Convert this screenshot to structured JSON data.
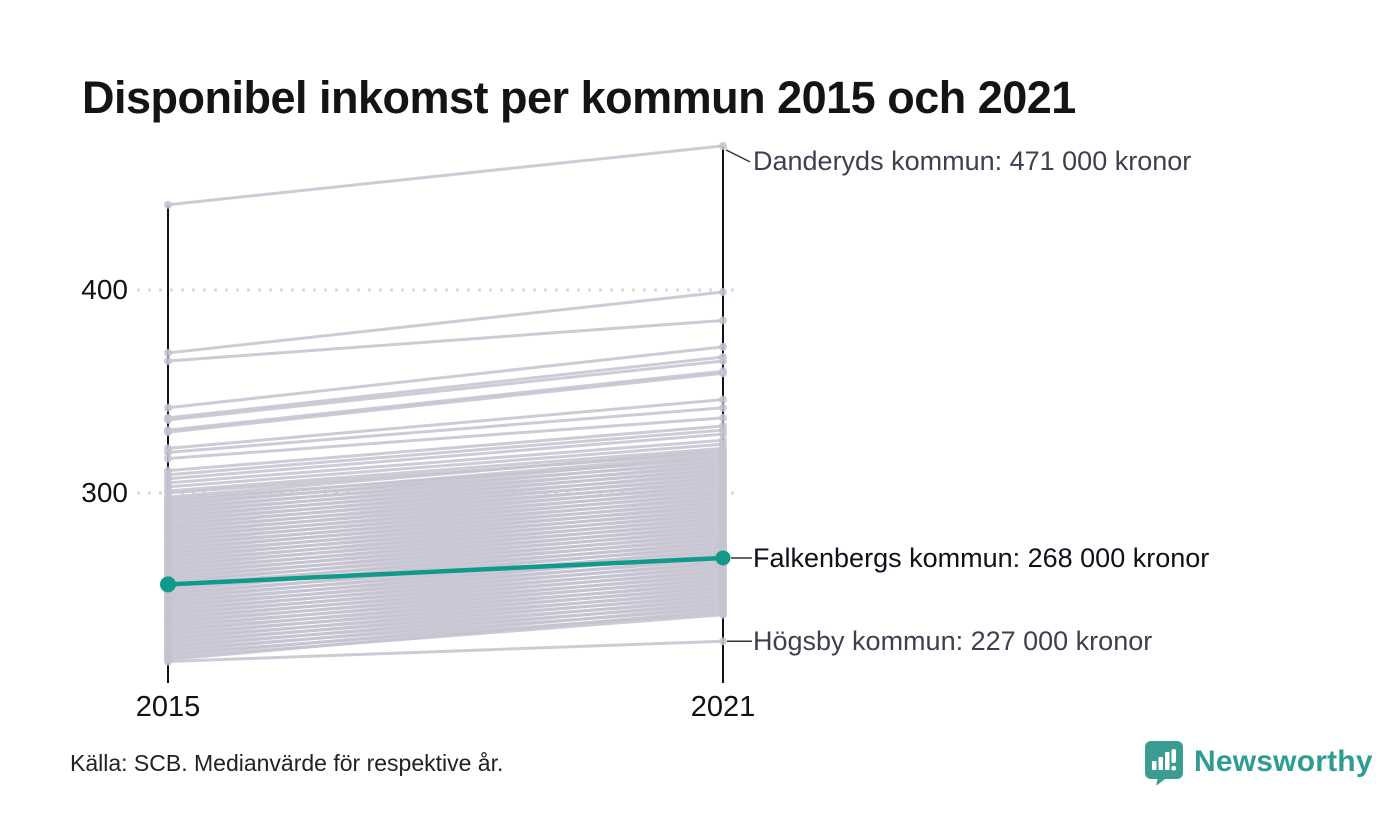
{
  "title": "Disponibel inkomst per kommun 2015 och 2021",
  "source_note": "Källa: SCB. Medianvärde för respektive år.",
  "logo": {
    "text": "Newsworthy",
    "color": "#2f9c92",
    "icon": "newsworthy-speech-bubble-bar-chart-icon",
    "icon_color": "#3b9c92"
  },
  "chart_data": {
    "type": "line",
    "subtype": "slope-chart",
    "x_categories": [
      "2015",
      "2021"
    ],
    "x_tick_labels": {
      "left": "2015",
      "right": "2021"
    },
    "y_tick_labels": {
      "t400": "400",
      "t300": "300"
    },
    "y_grid_values": [
      400,
      300
    ],
    "y_unit": "tusen kronor (medianvärde)",
    "grid": "dotted-horizontal",
    "colors": {
      "background_line": "#c6c3d1",
      "highlight_line": "#119a89",
      "axis": "#111111",
      "gridline": "#d8d8dd",
      "leader": "#333333"
    },
    "highlight_series": {
      "name": "Falkenbergs kommun",
      "values": [
        255,
        268
      ]
    },
    "annotations": [
      {
        "label": "Danderyds kommun: 471 000 kronor",
        "value_2021": 471,
        "highlight": false
      },
      {
        "label": "Falkenbergs kommun: 268 000 kronor",
        "value_2021": 268,
        "highlight": true
      },
      {
        "label": "Högsby kommun: 227 000 kronor",
        "value_2021": 227,
        "highlight": false
      }
    ],
    "background_series": [
      [
        442,
        471
      ],
      [
        369,
        399
      ],
      [
        365,
        385
      ],
      [
        342,
        372
      ],
      [
        337,
        367
      ],
      [
        336,
        365
      ],
      [
        331,
        360
      ],
      [
        330,
        359
      ],
      [
        322,
        346
      ],
      [
        320,
        342
      ],
      [
        317,
        337
      ],
      [
        311,
        333
      ],
      [
        309,
        331
      ],
      [
        307,
        329
      ],
      [
        305,
        326
      ],
      [
        303,
        324
      ],
      [
        301,
        322
      ],
      [
        300,
        320
      ],
      [
        298,
        321
      ],
      [
        297,
        317
      ],
      [
        296,
        319
      ],
      [
        295,
        315
      ],
      [
        294,
        318
      ],
      [
        293,
        313
      ],
      [
        292,
        316
      ],
      [
        291,
        311
      ],
      [
        290,
        314
      ],
      [
        289,
        309
      ],
      [
        288,
        312
      ],
      [
        287,
        307
      ],
      [
        286,
        310
      ],
      [
        285,
        305
      ],
      [
        284,
        308
      ],
      [
        283,
        303
      ],
      [
        282,
        306
      ],
      [
        281,
        301
      ],
      [
        280,
        304
      ],
      [
        279,
        299
      ],
      [
        278,
        302
      ],
      [
        277,
        297
      ],
      [
        276,
        300
      ],
      [
        275,
        295
      ],
      [
        274,
        298
      ],
      [
        273,
        293
      ],
      [
        272,
        296
      ],
      [
        271,
        291
      ],
      [
        270,
        294
      ],
      [
        269,
        289
      ],
      [
        268,
        292
      ],
      [
        267,
        287
      ],
      [
        266,
        290
      ],
      [
        265,
        285
      ],
      [
        264,
        288
      ],
      [
        263,
        283
      ],
      [
        262,
        286
      ],
      [
        261,
        281
      ],
      [
        260,
        284
      ],
      [
        259,
        279
      ],
      [
        258,
        282
      ],
      [
        257,
        277
      ],
      [
        256,
        280
      ],
      [
        255,
        275
      ],
      [
        254,
        278
      ],
      [
        253,
        273
      ],
      [
        252,
        276
      ],
      [
        251,
        271
      ],
      [
        250,
        274
      ],
      [
        249,
        269
      ],
      [
        248,
        272
      ],
      [
        247,
        267
      ],
      [
        246,
        270
      ],
      [
        245,
        265
      ],
      [
        244,
        268
      ],
      [
        243,
        263
      ],
      [
        242,
        266
      ],
      [
        241,
        261
      ],
      [
        240,
        264
      ],
      [
        239,
        259
      ],
      [
        238,
        262
      ],
      [
        237,
        257
      ],
      [
        236,
        260
      ],
      [
        235,
        255
      ],
      [
        234,
        258
      ],
      [
        233,
        253
      ],
      [
        232,
        256
      ],
      [
        231,
        251
      ],
      [
        230,
        254
      ],
      [
        229,
        249
      ],
      [
        228,
        252
      ],
      [
        227,
        247
      ],
      [
        226,
        250
      ],
      [
        225,
        245
      ],
      [
        224,
        248
      ],
      [
        223,
        243
      ],
      [
        222,
        246
      ],
      [
        221,
        241
      ],
      [
        220,
        244
      ],
      [
        219,
        240
      ],
      [
        218,
        242
      ],
      [
        217,
        227
      ]
    ]
  }
}
